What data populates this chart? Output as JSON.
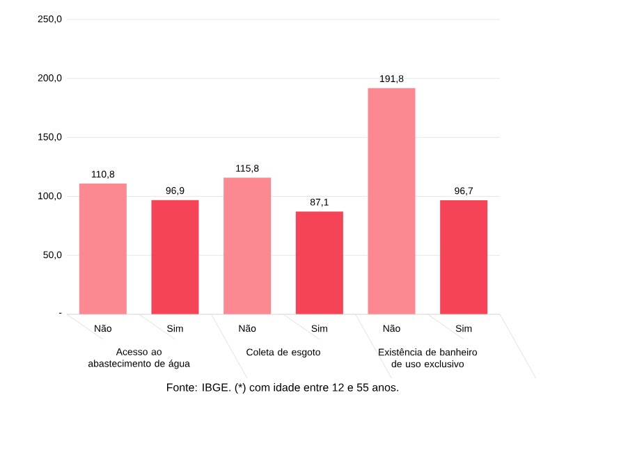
{
  "chart_data": {
    "type": "bar",
    "categories": [
      "Não",
      "Sim",
      "Não",
      "Sim",
      "Não",
      "Sim"
    ],
    "values": [
      110.8,
      96.9,
      115.8,
      87.1,
      191.8,
      96.7
    ],
    "colors": [
      "#fc8891",
      "#f54457",
      "#fc8891",
      "#f54457",
      "#fc8891",
      "#f54457"
    ],
    "value_labels": [
      "110,8",
      "96,9",
      "115,8",
      "87,1",
      "191,8",
      "96,7"
    ],
    "ylim": [
      0,
      250
    ],
    "yticks": [
      {
        "value": 0,
        "label": "-"
      },
      {
        "value": 50,
        "label": "50,0"
      },
      {
        "value": 100,
        "label": "100,0"
      },
      {
        "value": 150,
        "label": "150,0"
      },
      {
        "value": 200,
        "label": "200,0"
      },
      {
        "value": 250,
        "label": "250,0"
      }
    ],
    "grid": "y",
    "annotations": [
      "Acesso ao abastecimento de água",
      "Coleta de esgoto",
      "Existência de banheiro de uso exclusivo",
      "Fonte: IBGE. (*) com idade entre 12 e 55 anos."
    ]
  }
}
